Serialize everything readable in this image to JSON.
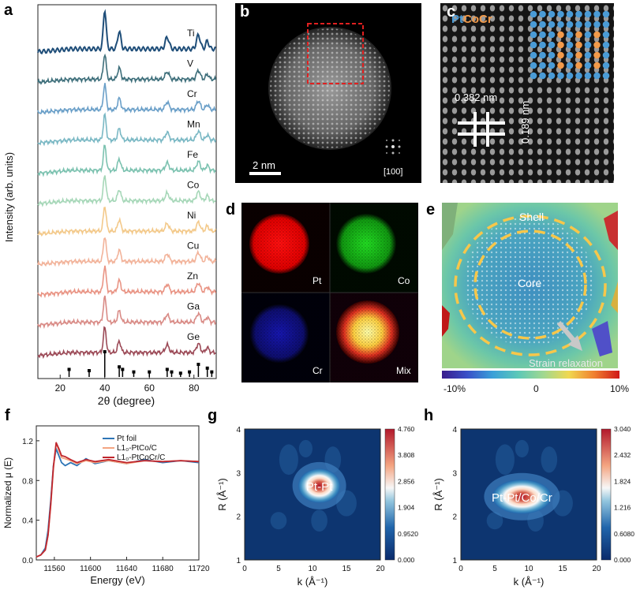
{
  "panels": {
    "a": "a",
    "b": "b",
    "c": "c",
    "d": "d",
    "e": "e",
    "f": "f",
    "g": "g",
    "h": "h"
  },
  "panel_a": {
    "ylabel": "Intensity (arb. units)",
    "xlabel": "2θ (degree)",
    "xticks": [
      "20",
      "40",
      "60",
      "80"
    ],
    "series_labels": [
      "Ti",
      "V",
      "Cr",
      "Mn",
      "Fe",
      "Co",
      "Ni",
      "Cu",
      "Zn",
      "Ga",
      "Ge"
    ],
    "series_colors": [
      "#1f4e79",
      "#3d6e7a",
      "#6a9fc8",
      "#7ab8c4",
      "#7cc2b0",
      "#a6d7b8",
      "#f3c98a",
      "#f2b39a",
      "#e99484",
      "#d98b86",
      "#9c4a57"
    ]
  },
  "panel_b": {
    "scale_bar": "2 nm",
    "zone_axis": "[100]"
  },
  "panel_c": {
    "legend_pt": "Pt",
    "legend_co": "Co",
    "legend_cr": "Cr",
    "d_spacing_1": "0.382 nm",
    "d_spacing_2": "0.189 nm",
    "pt_color": "#4a9bd6",
    "co_color": "#f29a4a"
  },
  "panel_d": {
    "labels": [
      "Pt",
      "Co",
      "Cr",
      "Mix"
    ]
  },
  "panel_e": {
    "shell": "Shell",
    "core": "Core",
    "strain": "Strain relaxation",
    "scale_ticks": [
      "-10%",
      "0",
      "10%"
    ]
  },
  "chart_data": [
    {
      "panel": "f",
      "type": "line",
      "xlabel": "Energy (eV)",
      "ylabel": "Normalized μ (E)",
      "xlim": [
        11540,
        11720
      ],
      "ylim": [
        0,
        1.35
      ],
      "xticks": [
        "11560",
        "11600",
        "11640",
        "11680",
        "11720"
      ],
      "yticks": [
        "0.0",
        "0.4",
        "0.8",
        "1.2"
      ],
      "legend": [
        "Pt foil",
        "L1₀-PtCo/C",
        "L1₀-PtCoCr/C"
      ],
      "series": [
        {
          "name": "Pt foil",
          "color": "#2e75b6",
          "x": [
            11540,
            11545,
            11550,
            11553,
            11556,
            11559,
            11562,
            11565,
            11568,
            11572,
            11578,
            11585,
            11595,
            11605,
            11620,
            11640,
            11660,
            11680,
            11700,
            11720
          ],
          "y": [
            0.03,
            0.05,
            0.12,
            0.3,
            0.6,
            0.95,
            1.12,
            1.05,
            0.98,
            0.95,
            0.98,
            0.95,
            1.02,
            0.97,
            1.0,
            0.97,
            1.01,
            0.98,
            1.0,
            0.98
          ]
        },
        {
          "name": "L1₀-PtCo/C",
          "color": "#f4a582",
          "x": [
            11540,
            11545,
            11550,
            11553,
            11556,
            11559,
            11562,
            11565,
            11568,
            11572,
            11578,
            11585,
            11595,
            11605,
            11620,
            11640,
            11660,
            11680,
            11700,
            11720
          ],
          "y": [
            0.03,
            0.05,
            0.1,
            0.25,
            0.55,
            0.92,
            1.18,
            1.1,
            1.03,
            1.02,
            1.0,
            0.97,
            1.0,
            0.98,
            1.0,
            0.97,
            1.0,
            0.99,
            1.0,
            0.99
          ]
        },
        {
          "name": "L1₀-PtCoCr/C",
          "color": "#c0262d",
          "x": [
            11540,
            11545,
            11550,
            11553,
            11556,
            11559,
            11562,
            11565,
            11568,
            11572,
            11578,
            11585,
            11595,
            11605,
            11620,
            11640,
            11660,
            11680,
            11700,
            11720
          ],
          "y": [
            0.03,
            0.05,
            0.1,
            0.25,
            0.56,
            0.94,
            1.18,
            1.12,
            1.05,
            1.04,
            1.01,
            0.98,
            1.01,
            0.99,
            1.01,
            0.98,
            1.0,
            0.99,
            1.0,
            0.99
          ]
        }
      ]
    },
    {
      "panel": "g",
      "type": "heatmap",
      "xlabel": "k (Å⁻¹)",
      "ylabel": "R (Å⁻¹)",
      "xlim": [
        0,
        20
      ],
      "ylim": [
        1,
        4
      ],
      "xticks": [
        "0",
        "5",
        "10",
        "15",
        "20"
      ],
      "yticks": [
        "1",
        "2",
        "3",
        "4"
      ],
      "annotation": "Pt-Pt",
      "peak": {
        "k": 11,
        "R": 2.7,
        "value": 4.76
      },
      "colorbar_ticks": [
        "4.760",
        "3.808",
        "2.856",
        "1.904",
        "0.9520",
        "0.000"
      ]
    },
    {
      "panel": "h",
      "type": "heatmap",
      "xlabel": "k (Å⁻¹)",
      "ylabel": "R (Å⁻¹)",
      "xlim": [
        0,
        20
      ],
      "ylim": [
        1,
        4
      ],
      "xticks": [
        "0",
        "5",
        "10",
        "15",
        "20"
      ],
      "yticks": [
        "1",
        "2",
        "3",
        "4"
      ],
      "annotation": "Pt-Pt/Co/Cr",
      "peak": {
        "k": 9,
        "R": 2.45,
        "value": 3.04
      },
      "colorbar_ticks": [
        "3.040",
        "2.432",
        "1.824",
        "1.216",
        "0.6080",
        "0.000"
      ]
    }
  ]
}
